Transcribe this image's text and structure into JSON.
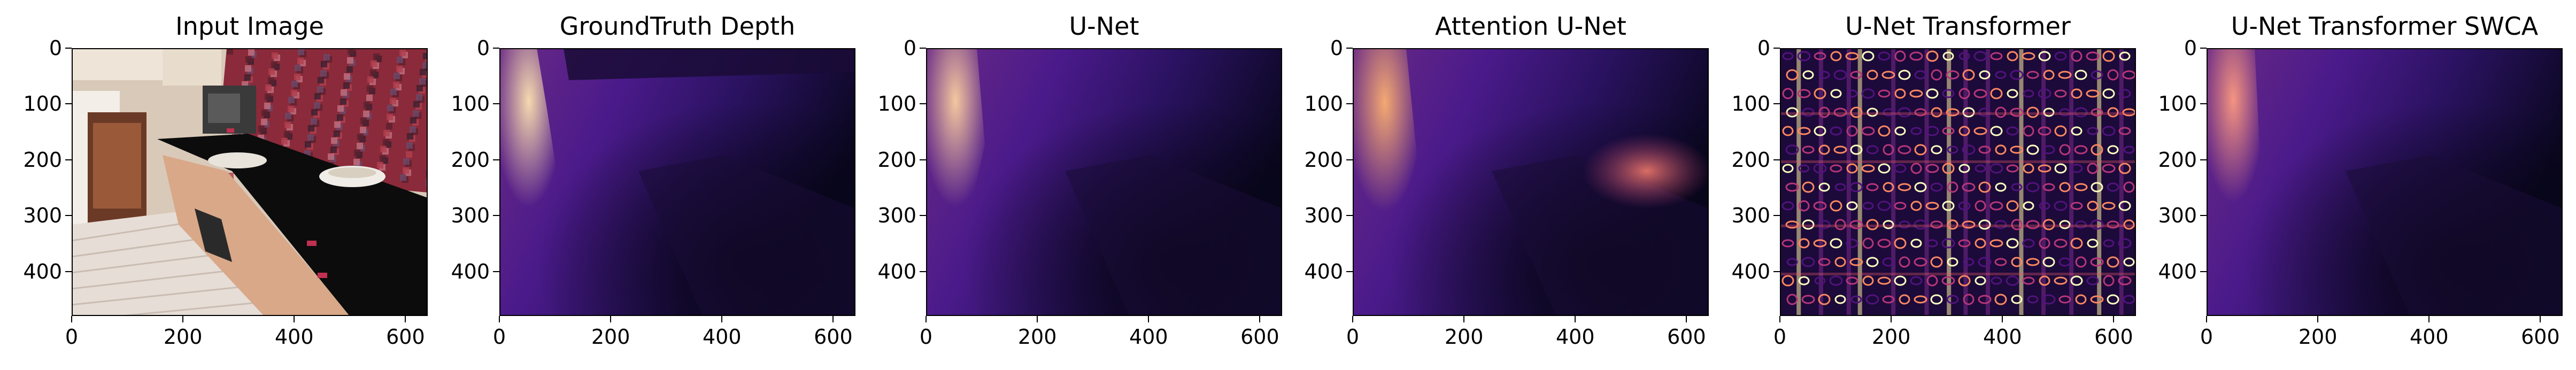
{
  "figure": {
    "panels": [
      {
        "title": "Input Image",
        "kind": "photo"
      },
      {
        "title": "GroundTruth Depth",
        "kind": "gt"
      },
      {
        "title": "U-Net",
        "kind": "unet"
      },
      {
        "title": "Attention U-Net",
        "kind": "attn"
      },
      {
        "title": "U-Net Transformer",
        "kind": "noisy"
      },
      {
        "title": "U-Net Transformer SWCA",
        "kind": "swca"
      }
    ],
    "y_ticks": [
      "0",
      "100",
      "200",
      "300",
      "400"
    ],
    "x_ticks": [
      "0",
      "200",
      "400",
      "600"
    ],
    "colormap": "magma"
  }
}
